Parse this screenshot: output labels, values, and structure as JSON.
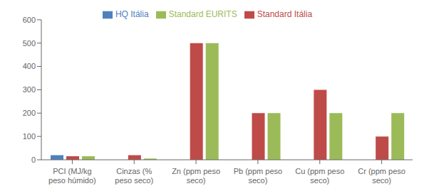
{
  "chart_data": {
    "type": "bar",
    "categories": [
      "PCI (MJ/kg\npeso húmido)",
      "Cinzas (%\npeso seco)",
      "Zn (ppm peso\nseco)",
      "Pb (ppm peso\nseco)",
      "Cu (ppm peso\nseco)",
      "Cr (ppm peso\nseco)"
    ],
    "series": [
      {
        "name": "HQ Itália",
        "color": "#4F81BD",
        "values": [
          20,
          0,
          0,
          0,
          0,
          0
        ]
      },
      {
        "name": "Standard Itália",
        "color": "#BE4B48",
        "values": [
          15,
          20,
          500,
          200,
          300,
          100
        ]
      },
      {
        "name": "Standard EURITS",
        "color": "#9BBB59",
        "values": [
          15,
          5,
          500,
          200,
          200,
          200
        ]
      }
    ],
    "ylim": [
      0,
      600
    ],
    "yticks": [
      0,
      100,
      200,
      300,
      400,
      500,
      600
    ],
    "grid": false,
    "legend": "top"
  }
}
